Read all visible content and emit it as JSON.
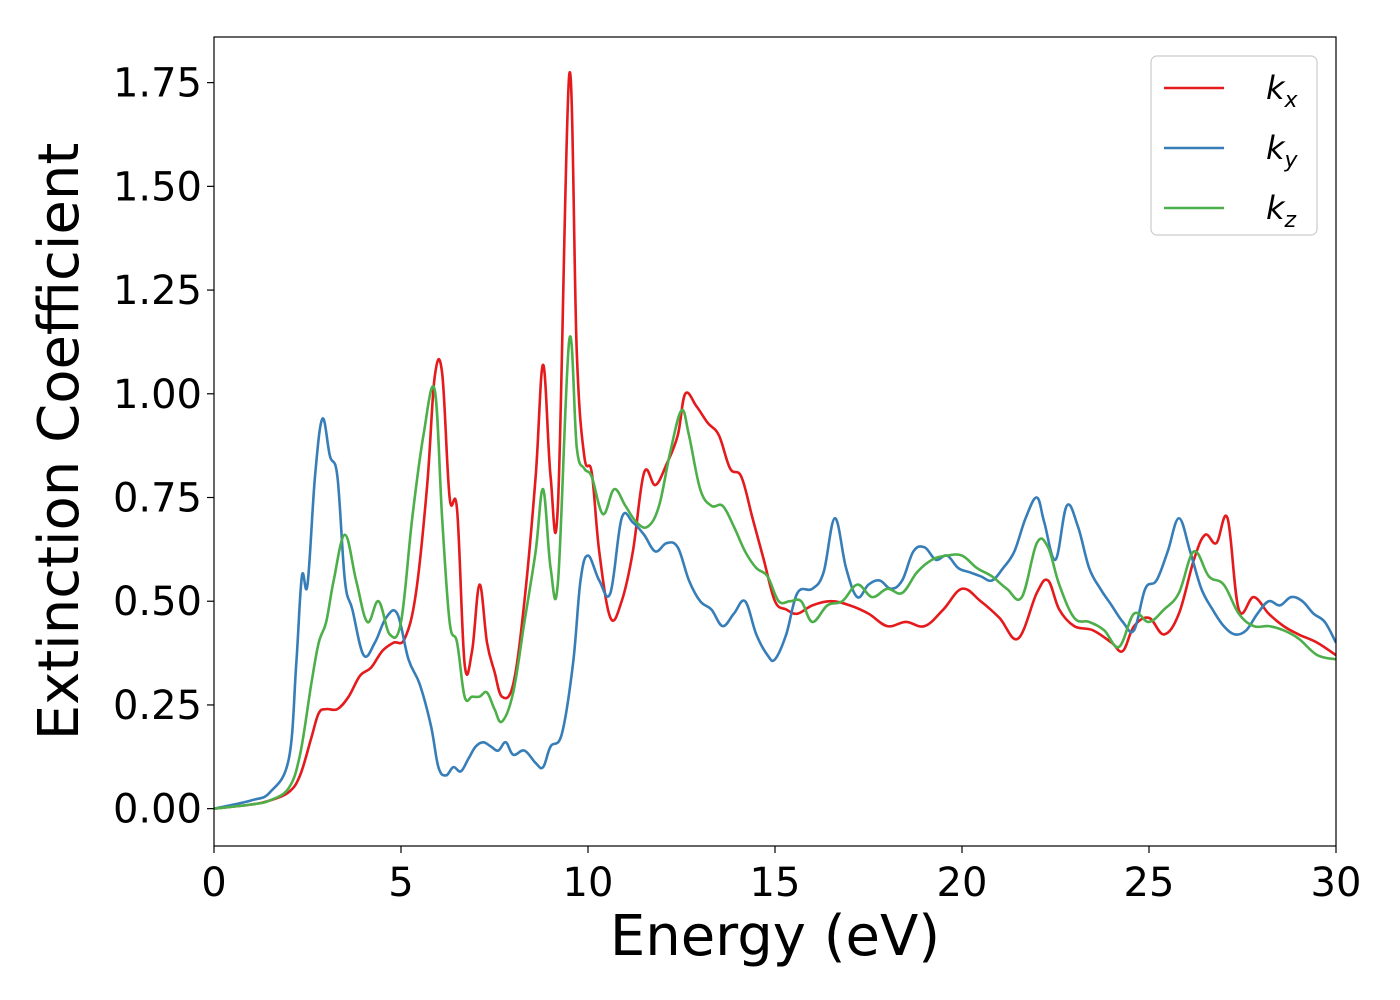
{
  "chart_data": {
    "type": "line",
    "xlabel": "Energy (eV)",
    "ylabel": "Extinction Coefficient",
    "xlim": [
      0,
      30
    ],
    "ylim": [
      -0.09,
      1.86
    ],
    "xticks": [
      0,
      5,
      10,
      15,
      20,
      25,
      30
    ],
    "xtick_labels": [
      "0",
      "5",
      "10",
      "15",
      "20",
      "25",
      "30"
    ],
    "yticks": [
      0,
      0.25,
      0.5,
      0.75,
      1.0,
      1.25,
      1.5,
      1.75
    ],
    "ytick_labels": [
      "0.00",
      "0.25",
      "0.50",
      "0.75",
      "1.00",
      "1.25",
      "1.50",
      "1.75"
    ],
    "grid": false,
    "legend": {
      "position": "top-right"
    },
    "series": [
      {
        "name": "k",
        "subscript": "x",
        "color": "#e41a1c",
        "x": [
          0,
          1,
          1.5,
          2,
          2.3,
          2.6,
          2.8,
          3.0,
          3.3,
          3.6,
          3.9,
          4.2,
          4.5,
          4.8,
          5.1,
          5.4,
          5.7,
          5.9,
          6.1,
          6.3,
          6.5,
          6.7,
          6.9,
          7.1,
          7.3,
          7.5,
          7.7,
          8.0,
          8.3,
          8.6,
          8.8,
          9.0,
          9.2,
          9.5,
          9.7,
          9.9,
          10.1,
          10.3,
          10.6,
          10.9,
          11.2,
          11.5,
          11.8,
          12.1,
          12.4,
          12.6,
          12.9,
          13.2,
          13.5,
          13.8,
          14.1,
          14.4,
          14.7,
          15.0,
          15.3,
          15.6,
          16.0,
          16.5,
          17.0,
          17.5,
          18.0,
          18.5,
          19.0,
          19.5,
          20.0,
          20.5,
          21.0,
          21.5,
          22.0,
          22.3,
          22.6,
          23.0,
          23.5,
          24.0,
          24.3,
          24.6,
          25.0,
          25.4,
          25.8,
          26.2,
          26.5,
          26.8,
          27.1,
          27.4,
          27.8,
          28.2,
          28.6,
          29.0,
          29.5,
          30.0
        ],
        "y": [
          0.0,
          0.01,
          0.02,
          0.04,
          0.08,
          0.17,
          0.23,
          0.24,
          0.24,
          0.27,
          0.32,
          0.34,
          0.38,
          0.4,
          0.41,
          0.52,
          0.78,
          1.04,
          1.05,
          0.75,
          0.72,
          0.35,
          0.38,
          0.54,
          0.4,
          0.33,
          0.27,
          0.3,
          0.5,
          0.8,
          1.07,
          0.8,
          0.74,
          1.77,
          1.1,
          0.85,
          0.81,
          0.62,
          0.46,
          0.5,
          0.62,
          0.81,
          0.78,
          0.83,
          0.9,
          1.0,
          0.97,
          0.93,
          0.9,
          0.82,
          0.8,
          0.7,
          0.6,
          0.5,
          0.48,
          0.47,
          0.49,
          0.5,
          0.49,
          0.47,
          0.44,
          0.45,
          0.44,
          0.48,
          0.53,
          0.5,
          0.46,
          0.41,
          0.52,
          0.55,
          0.48,
          0.44,
          0.43,
          0.4,
          0.38,
          0.44,
          0.46,
          0.42,
          0.47,
          0.6,
          0.66,
          0.64,
          0.7,
          0.48,
          0.51,
          0.47,
          0.44,
          0.42,
          0.4,
          0.37
        ]
      },
      {
        "name": "k",
        "subscript": "y",
        "color": "#377eb8",
        "x": [
          0,
          1,
          1.5,
          2,
          2.2,
          2.35,
          2.5,
          2.7,
          2.9,
          3.1,
          3.3,
          3.5,
          3.7,
          4.0,
          4.3,
          4.6,
          4.9,
          5.2,
          5.5,
          5.8,
          6.0,
          6.2,
          6.4,
          6.6,
          6.8,
          7.0,
          7.2,
          7.4,
          7.6,
          7.8,
          8.0,
          8.3,
          8.6,
          8.8,
          9.0,
          9.3,
          9.6,
          9.8,
          10.0,
          10.3,
          10.6,
          10.9,
          11.2,
          11.5,
          11.8,
          12.1,
          12.4,
          12.7,
          13.0,
          13.3,
          13.6,
          13.9,
          14.2,
          14.5,
          14.8,
          15.0,
          15.3,
          15.6,
          16.0,
          16.3,
          16.6,
          16.9,
          17.2,
          17.5,
          17.8,
          18.1,
          18.4,
          18.7,
          19.0,
          19.3,
          19.6,
          19.9,
          20.2,
          20.5,
          20.8,
          21.1,
          21.4,
          21.7,
          22.0,
          22.2,
          22.5,
          22.8,
          23.1,
          23.4,
          23.7,
          24.0,
          24.3,
          24.6,
          24.9,
          25.2,
          25.5,
          25.8,
          26.1,
          26.4,
          26.7,
          27.0,
          27.3,
          27.6,
          27.9,
          28.2,
          28.5,
          28.8,
          29.1,
          29.4,
          29.7,
          30.0
        ],
        "y": [
          0.0,
          0.02,
          0.04,
          0.12,
          0.35,
          0.56,
          0.54,
          0.8,
          0.94,
          0.85,
          0.8,
          0.55,
          0.48,
          0.37,
          0.4,
          0.46,
          0.47,
          0.36,
          0.3,
          0.2,
          0.1,
          0.08,
          0.1,
          0.09,
          0.12,
          0.15,
          0.16,
          0.15,
          0.14,
          0.16,
          0.13,
          0.14,
          0.11,
          0.1,
          0.15,
          0.18,
          0.35,
          0.55,
          0.61,
          0.55,
          0.52,
          0.7,
          0.69,
          0.66,
          0.62,
          0.64,
          0.63,
          0.55,
          0.5,
          0.48,
          0.44,
          0.47,
          0.5,
          0.42,
          0.37,
          0.36,
          0.42,
          0.52,
          0.53,
          0.57,
          0.7,
          0.58,
          0.51,
          0.54,
          0.55,
          0.53,
          0.55,
          0.62,
          0.63,
          0.6,
          0.61,
          0.58,
          0.57,
          0.56,
          0.55,
          0.58,
          0.62,
          0.7,
          0.75,
          0.69,
          0.6,
          0.73,
          0.68,
          0.58,
          0.53,
          0.49,
          0.45,
          0.43,
          0.53,
          0.55,
          0.62,
          0.7,
          0.62,
          0.53,
          0.48,
          0.44,
          0.42,
          0.43,
          0.47,
          0.5,
          0.49,
          0.51,
          0.5,
          0.47,
          0.45,
          0.4
        ]
      },
      {
        "name": "k",
        "subscript": "z",
        "color": "#4daf4a",
        "x": [
          0,
          1,
          1.5,
          2,
          2.3,
          2.6,
          2.8,
          3.0,
          3.2,
          3.5,
          3.8,
          4.1,
          4.4,
          4.7,
          5.0,
          5.3,
          5.6,
          5.9,
          6.1,
          6.3,
          6.5,
          6.7,
          6.9,
          7.1,
          7.3,
          7.5,
          7.7,
          8.0,
          8.3,
          8.6,
          8.8,
          9.0,
          9.2,
          9.5,
          9.7,
          9.9,
          10.1,
          10.4,
          10.7,
          11.0,
          11.3,
          11.6,
          11.9,
          12.2,
          12.5,
          12.7,
          13.0,
          13.3,
          13.6,
          13.9,
          14.2,
          14.5,
          14.8,
          15.1,
          15.4,
          15.7,
          16.0,
          16.4,
          16.8,
          17.2,
          17.6,
          18.0,
          18.4,
          18.8,
          19.2,
          19.6,
          20.0,
          20.4,
          20.8,
          21.2,
          21.6,
          22.0,
          22.3,
          22.6,
          23.0,
          23.4,
          23.8,
          24.2,
          24.6,
          25.0,
          25.4,
          25.8,
          26.2,
          26.6,
          27.0,
          27.4,
          27.8,
          28.2,
          28.6,
          29.0,
          29.5,
          30.0
        ],
        "y": [
          0.0,
          0.01,
          0.02,
          0.05,
          0.13,
          0.3,
          0.4,
          0.45,
          0.55,
          0.66,
          0.55,
          0.45,
          0.5,
          0.42,
          0.45,
          0.7,
          0.9,
          1.01,
          0.7,
          0.45,
          0.4,
          0.27,
          0.27,
          0.27,
          0.28,
          0.24,
          0.21,
          0.28,
          0.45,
          0.62,
          0.77,
          0.58,
          0.55,
          1.13,
          0.87,
          0.82,
          0.8,
          0.71,
          0.77,
          0.73,
          0.69,
          0.68,
          0.73,
          0.86,
          0.96,
          0.9,
          0.77,
          0.73,
          0.73,
          0.68,
          0.62,
          0.58,
          0.56,
          0.5,
          0.5,
          0.5,
          0.45,
          0.49,
          0.5,
          0.54,
          0.51,
          0.53,
          0.52,
          0.57,
          0.6,
          0.61,
          0.61,
          0.58,
          0.56,
          0.53,
          0.51,
          0.64,
          0.63,
          0.54,
          0.46,
          0.45,
          0.43,
          0.39,
          0.47,
          0.45,
          0.48,
          0.52,
          0.62,
          0.56,
          0.54,
          0.47,
          0.44,
          0.44,
          0.43,
          0.41,
          0.37,
          0.36
        ]
      }
    ]
  }
}
